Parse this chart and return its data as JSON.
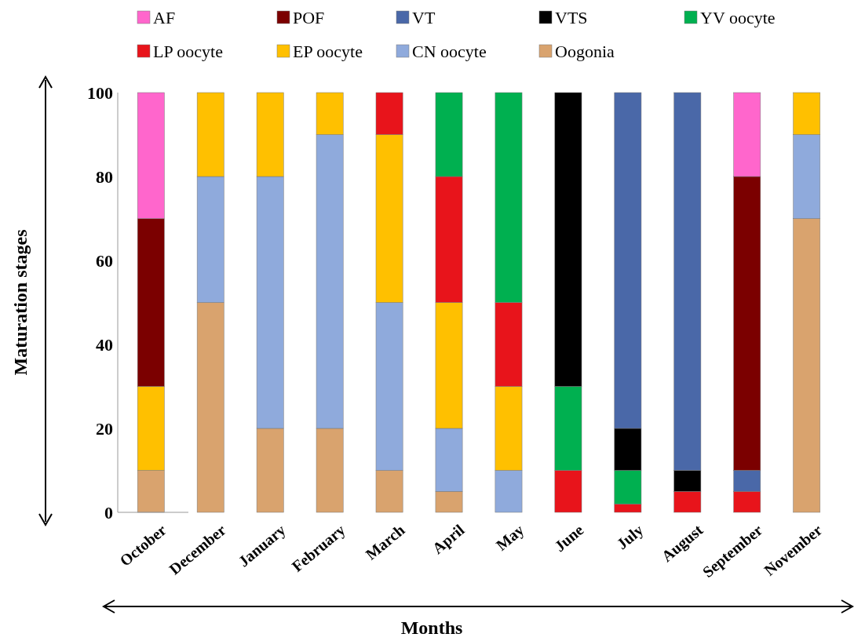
{
  "chart_data": {
    "type": "bar",
    "stacked": true,
    "xlabel": "Months",
    "ylabel": "Maturation stages",
    "categories": [
      "October",
      "December",
      "January",
      "February",
      "March",
      "April",
      "May",
      "June",
      "July",
      "August",
      "September",
      "November"
    ],
    "ylim": [
      0,
      100
    ],
    "yticks": [
      0,
      20,
      40,
      60,
      80,
      100
    ],
    "grid": false,
    "legend": "top",
    "series": [
      {
        "name": "Oogonia",
        "color": "#d9a36e",
        "values": [
          10,
          50,
          20,
          20,
          10,
          5,
          0,
          0,
          0,
          0,
          0,
          70
        ]
      },
      {
        "name": "CN oocyte",
        "color": "#8faadc",
        "values": [
          0,
          30,
          60,
          70,
          40,
          15,
          10,
          0,
          0,
          0,
          0,
          20
        ]
      },
      {
        "name": "EP oocyte",
        "color": "#ffc000",
        "values": [
          20,
          20,
          20,
          10,
          40,
          30,
          20,
          0,
          0,
          0,
          0,
          10
        ]
      },
      {
        "name": "LP oocyte",
        "color": "#e8141b",
        "values": [
          0,
          0,
          0,
          0,
          10,
          30,
          20,
          10,
          2,
          5,
          5,
          0
        ]
      },
      {
        "name": "YV oocyte",
        "color": "#00b050",
        "values": [
          0,
          0,
          0,
          0,
          0,
          20,
          50,
          20,
          8,
          0,
          0,
          0
        ]
      },
      {
        "name": "VTS",
        "color": "#000000",
        "values": [
          0,
          0,
          0,
          0,
          0,
          0,
          0,
          70,
          10,
          5,
          0,
          0
        ]
      },
      {
        "name": "VT",
        "color": "#4a68a8",
        "values": [
          0,
          0,
          0,
          0,
          0,
          0,
          0,
          0,
          80,
          90,
          5,
          0
        ]
      },
      {
        "name": "POF",
        "color": "#7b0000",
        "values": [
          40,
          0,
          0,
          0,
          0,
          0,
          0,
          0,
          0,
          0,
          70,
          0
        ]
      },
      {
        "name": "AF",
        "color": "#ff66cc",
        "values": [
          30,
          0,
          0,
          0,
          0,
          0,
          0,
          0,
          0,
          0,
          20,
          0
        ]
      }
    ]
  }
}
